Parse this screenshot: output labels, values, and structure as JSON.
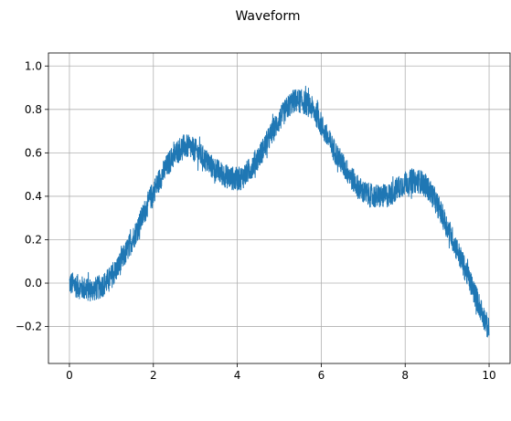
{
  "chart_data": {
    "type": "line",
    "title": "Waveform",
    "xlabel": "",
    "ylabel": "",
    "xlim": [
      -0.5,
      10.5
    ],
    "ylim": [
      -0.37,
      1.06
    ],
    "grid": true,
    "legend": false,
    "series_color": "#1f77b4",
    "noise_half_amplitude": 0.055,
    "x_ticks": [
      {
        "value": 0,
        "label": "0"
      },
      {
        "value": 2,
        "label": "2"
      },
      {
        "value": 4,
        "label": "4"
      },
      {
        "value": 6,
        "label": "6"
      },
      {
        "value": 8,
        "label": "8"
      },
      {
        "value": 10,
        "label": "10"
      }
    ],
    "y_ticks": [
      {
        "value": -0.2,
        "label": "−0.2"
      },
      {
        "value": 0.0,
        "label": "0.0"
      },
      {
        "value": 0.2,
        "label": "0.2"
      },
      {
        "value": 0.4,
        "label": "0.4"
      },
      {
        "value": 0.6,
        "label": "0.6"
      },
      {
        "value": 0.8,
        "label": "0.8"
      },
      {
        "value": 1.0,
        "label": "1.0"
      }
    ],
    "series": [
      {
        "x": [
          0.0,
          0.5,
          1.0,
          1.5,
          2.0,
          2.5,
          2.75,
          3.0,
          3.5,
          4.0,
          4.5,
          5.0,
          5.4,
          5.8,
          6.2,
          6.6,
          7.0,
          7.5,
          8.0,
          8.3,
          8.6,
          9.0,
          9.5,
          10.0
        ],
        "y": [
          0.0,
          -0.03,
          0.03,
          0.2,
          0.42,
          0.59,
          0.63,
          0.61,
          0.52,
          0.48,
          0.58,
          0.75,
          0.84,
          0.8,
          0.65,
          0.52,
          0.42,
          0.4,
          0.46,
          0.47,
          0.42,
          0.26,
          0.03,
          -0.22
        ]
      }
    ]
  }
}
